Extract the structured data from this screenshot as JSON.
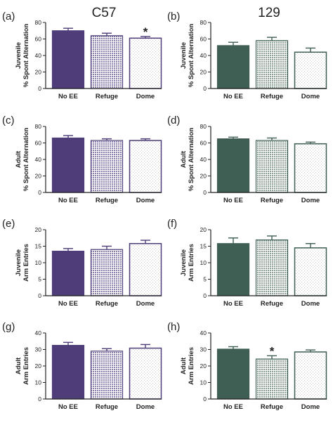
{
  "colors": {
    "c57": "#4e3d78",
    "s129": "#3f5e54",
    "c57_refuge": "#8c81ae",
    "s129_refuge": "#8aa095",
    "dome_fill": "#f7f7f7",
    "axis": "#222222"
  },
  "columns": {
    "left_title": "C57",
    "right_title": "129"
  },
  "chart_data": [
    {
      "type": "bar",
      "panel": "(a)",
      "strain": "C57",
      "categories": [
        "No EE",
        "Refuge",
        "Dome"
      ],
      "values": [
        70,
        64,
        61
      ],
      "errors": [
        3,
        3,
        2
      ],
      "significance": [
        "",
        "",
        "*"
      ],
      "ylabel": [
        "Juvenile",
        "% Spont Alternation"
      ],
      "ylim": [
        0,
        80
      ],
      "yticks": [
        0,
        20,
        40,
        60,
        80
      ]
    },
    {
      "type": "bar",
      "panel": "(b)",
      "strain": "129",
      "categories": [
        "No EE",
        "Refuge",
        "Dome"
      ],
      "values": [
        52,
        58,
        44
      ],
      "errors": [
        4,
        4,
        5
      ],
      "significance": [
        "",
        "",
        ""
      ],
      "ylabel": [
        "Juvenile",
        "% Spont Alternation"
      ],
      "ylim": [
        0,
        80
      ],
      "yticks": [
        0,
        20,
        40,
        60,
        80
      ]
    },
    {
      "type": "bar",
      "panel": "(c)",
      "strain": "C57",
      "categories": [
        "No EE",
        "Refuge",
        "Dome"
      ],
      "values": [
        66,
        63,
        63
      ],
      "errors": [
        3,
        2,
        2
      ],
      "significance": [
        "",
        "",
        ""
      ],
      "ylabel": [
        "Adult",
        "% Spont Alternation"
      ],
      "ylim": [
        0,
        80
      ],
      "yticks": [
        0,
        20,
        40,
        60,
        80
      ]
    },
    {
      "type": "bar",
      "panel": "(d)",
      "strain": "129",
      "categories": [
        "No EE",
        "Refuge",
        "Dome"
      ],
      "values": [
        65,
        63,
        59
      ],
      "errors": [
        2,
        3,
        2
      ],
      "significance": [
        "",
        "",
        ""
      ],
      "ylabel": [
        "Adult",
        "% Spont Alternation"
      ],
      "ylim": [
        0,
        80
      ],
      "yticks": [
        0,
        20,
        40,
        60,
        80
      ]
    },
    {
      "type": "bar",
      "panel": "(e)",
      "strain": "C57",
      "categories": [
        "No EE",
        "Refuge",
        "Dome"
      ],
      "values": [
        13.5,
        14,
        15.8
      ],
      "errors": [
        0.8,
        1,
        1
      ],
      "significance": [
        "",
        "",
        ""
      ],
      "ylabel": [
        "Juvenile",
        "Arm Entries"
      ],
      "ylim": [
        0,
        20
      ],
      "yticks": [
        0,
        5,
        10,
        15,
        20
      ]
    },
    {
      "type": "bar",
      "panel": "(f)",
      "strain": "129",
      "categories": [
        "No EE",
        "Refuge",
        "Dome"
      ],
      "values": [
        15.8,
        16.9,
        14.5
      ],
      "errors": [
        1.7,
        1.2,
        1.3
      ],
      "significance": [
        "",
        "",
        ""
      ],
      "ylabel": [
        "Juvenile",
        "Arm Entries"
      ],
      "ylim": [
        0,
        20
      ],
      "yticks": [
        0,
        5,
        10,
        15,
        20
      ]
    },
    {
      "type": "bar",
      "panel": "(g)",
      "strain": "C57",
      "categories": [
        "No EE",
        "Refuge",
        "Dome"
      ],
      "values": [
        32.5,
        29,
        30.8
      ],
      "errors": [
        1.8,
        1.5,
        2.2
      ],
      "significance": [
        "",
        "",
        ""
      ],
      "ylabel": [
        "Adult",
        "Arm Entries"
      ],
      "ylim": [
        0,
        40
      ],
      "yticks": [
        0,
        10,
        20,
        30,
        40
      ]
    },
    {
      "type": "bar",
      "panel": "(h)",
      "strain": "129",
      "categories": [
        "No EE",
        "Refuge",
        "Dome"
      ],
      "values": [
        30.2,
        24.2,
        28.5
      ],
      "errors": [
        1.5,
        2,
        1.2
      ],
      "significance": [
        "",
        "*",
        ""
      ],
      "ylabel": [
        "Adult",
        "Arm Entries"
      ],
      "ylim": [
        0,
        40
      ],
      "yticks": [
        0,
        10,
        20,
        30,
        40
      ]
    }
  ]
}
